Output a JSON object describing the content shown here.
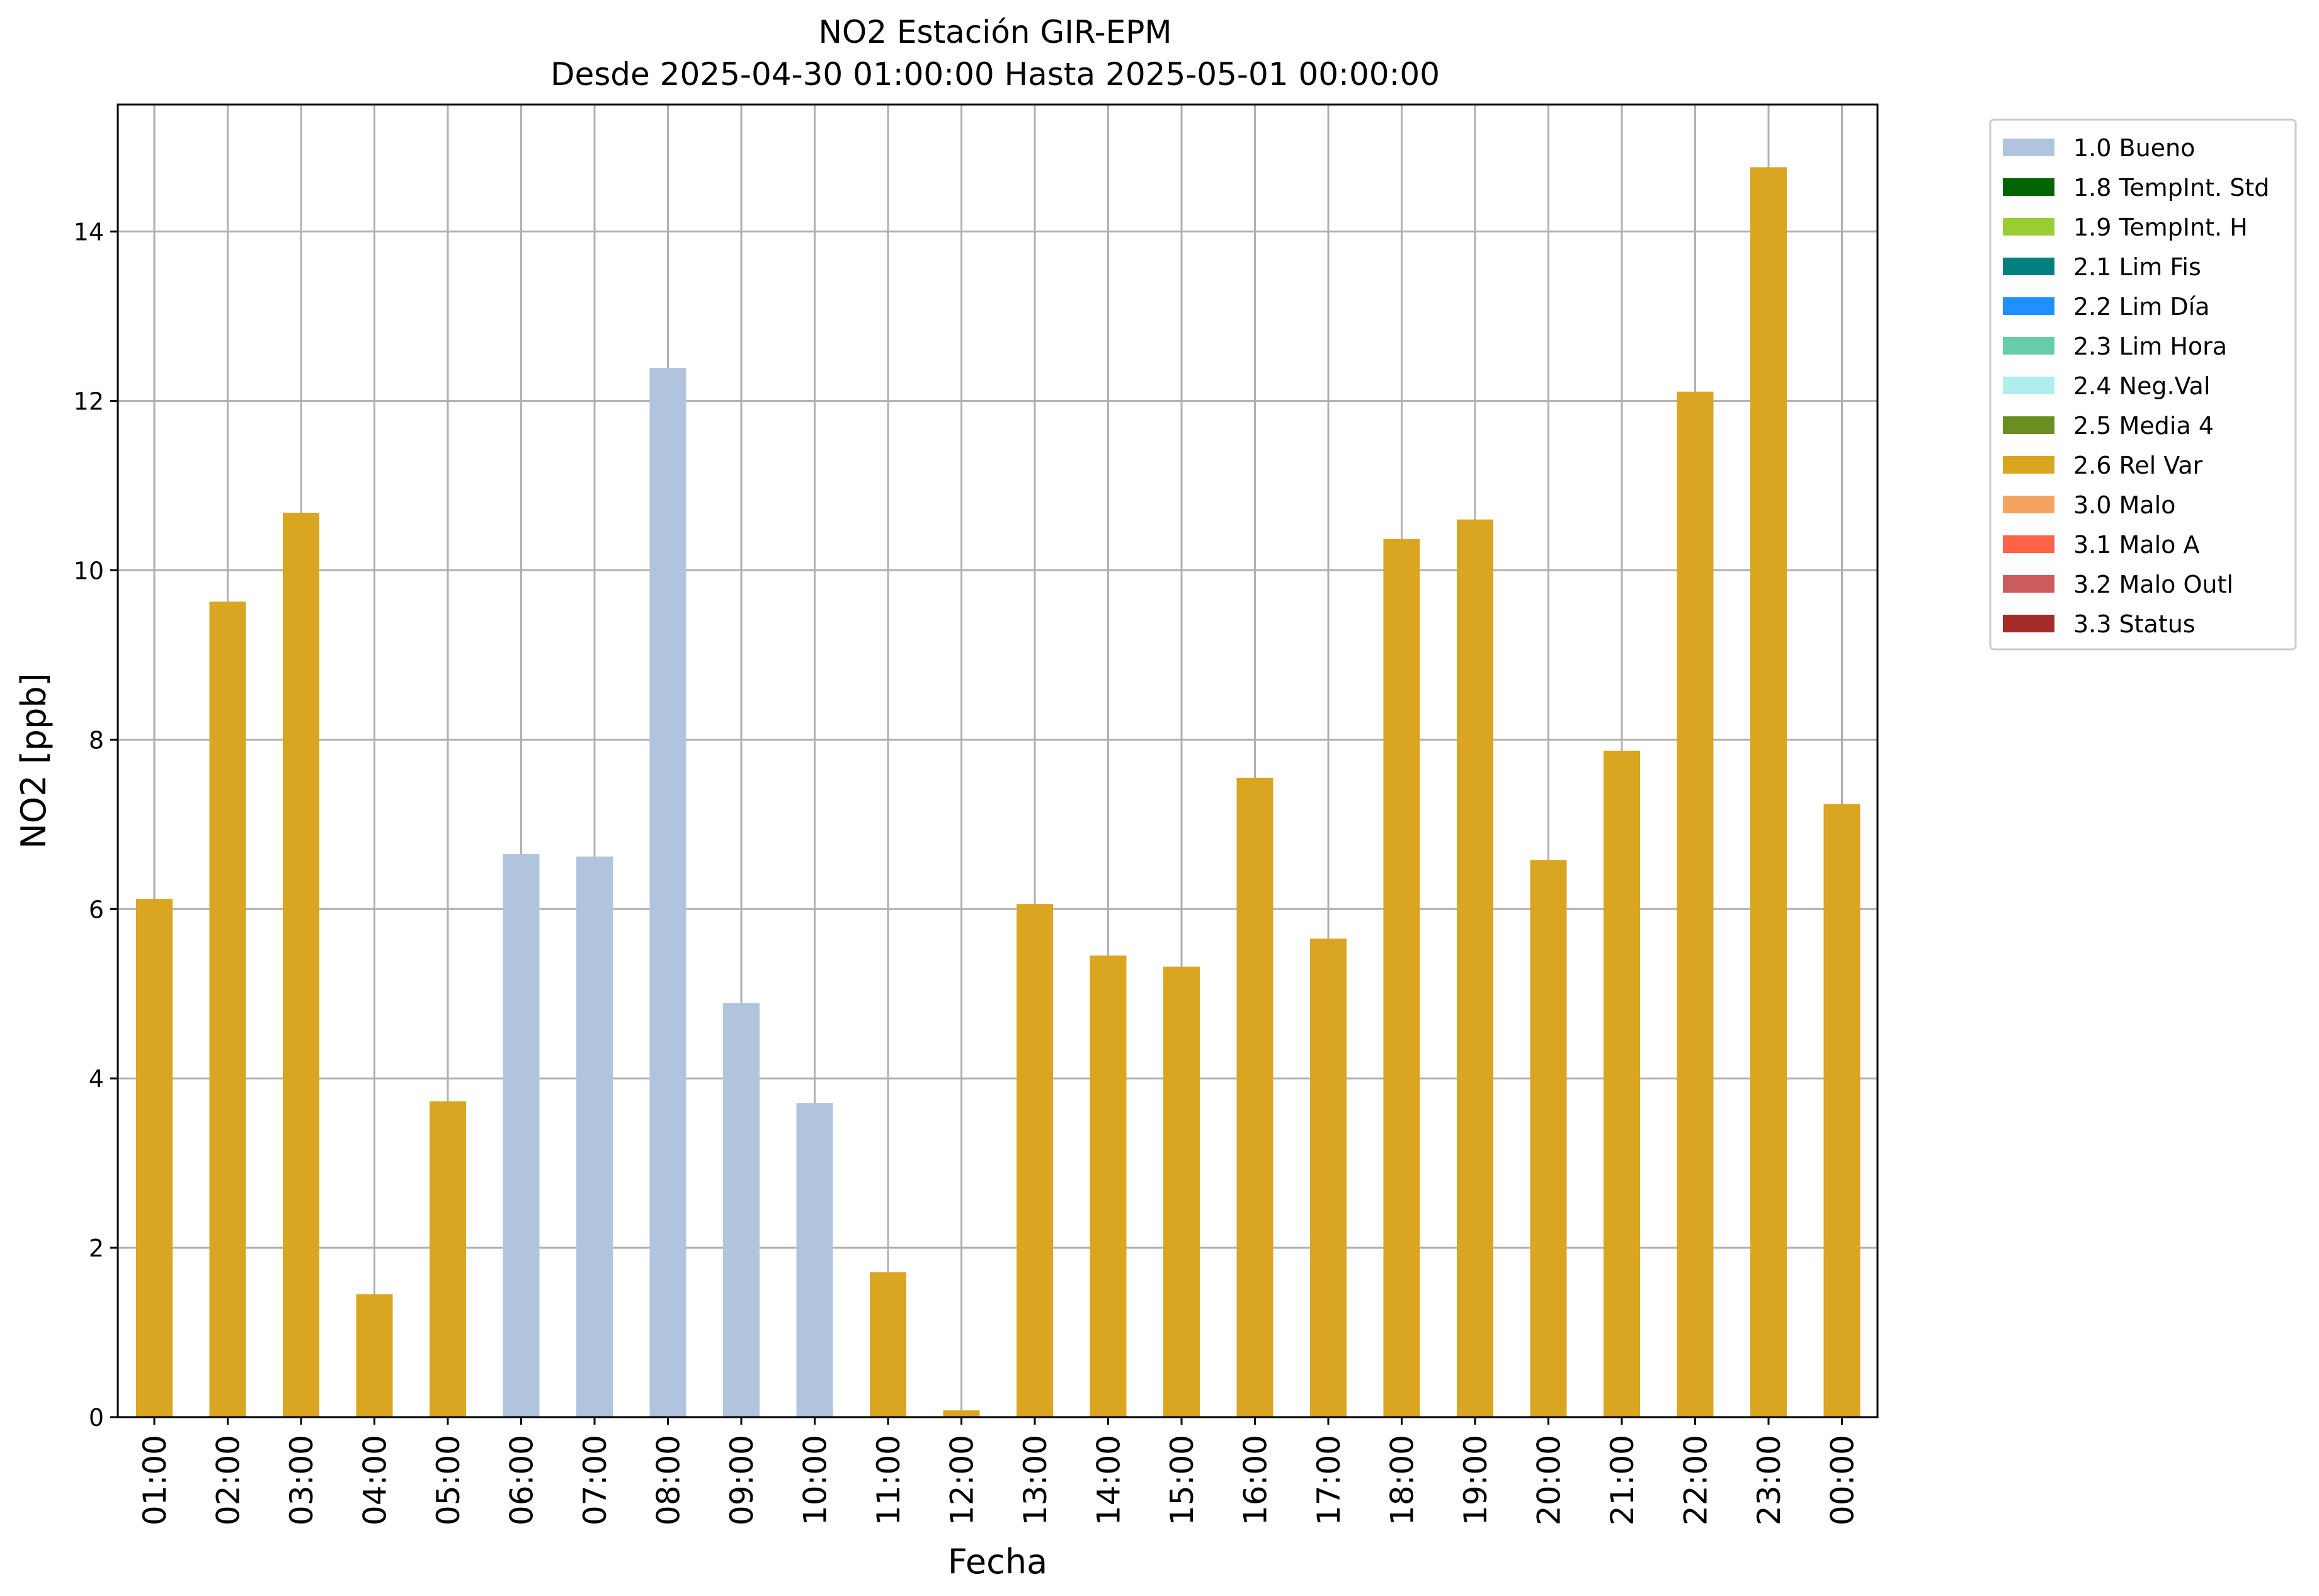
{
  "chart_data": {
    "type": "bar",
    "title": "NO2 Estación GIR-EPM",
    "subtitle": "Desde 2025-04-30 01:00:00 Hasta 2025-05-01 00:00:00",
    "xlabel": "Fecha",
    "ylabel": "NO2 [ppb]",
    "ylim": [
      0,
      15.5
    ],
    "yticks": [
      0,
      2,
      4,
      6,
      8,
      10,
      12,
      14
    ],
    "grid": true,
    "legend_position": "outside-right-top",
    "categories": [
      "01:00",
      "02:00",
      "03:00",
      "04:00",
      "05:00",
      "06:00",
      "07:00",
      "08:00",
      "09:00",
      "10:00",
      "11:00",
      "12:00",
      "13:00",
      "14:00",
      "15:00",
      "16:00",
      "17:00",
      "18:00",
      "19:00",
      "20:00",
      "21:00",
      "22:00",
      "23:00",
      "00:00"
    ],
    "values": [
      6.12,
      9.63,
      10.68,
      1.45,
      3.73,
      6.65,
      6.62,
      12.39,
      4.89,
      3.71,
      1.71,
      0.08,
      6.06,
      5.45,
      5.32,
      7.55,
      5.65,
      10.37,
      10.6,
      6.58,
      7.87,
      12.11,
      14.76,
      7.24
    ],
    "flags": [
      "2.6 Rel Var",
      "2.6 Rel Var",
      "2.6 Rel Var",
      "2.6 Rel Var",
      "2.6 Rel Var",
      "1.0 Bueno",
      "1.0 Bueno",
      "1.0 Bueno",
      "1.0 Bueno",
      "1.0 Bueno",
      "2.6 Rel Var",
      "2.6 Rel Var",
      "2.6 Rel Var",
      "2.6 Rel Var",
      "2.6 Rel Var",
      "2.6 Rel Var",
      "2.6 Rel Var",
      "2.6 Rel Var",
      "2.6 Rel Var",
      "2.6 Rel Var",
      "2.6 Rel Var",
      "2.6 Rel Var",
      "2.6 Rel Var",
      "2.6 Rel Var"
    ],
    "legend": [
      {
        "label": "1.0 Bueno",
        "color": "#b0c4de"
      },
      {
        "label": "1.8 TempInt. Std",
        "color": "#006400"
      },
      {
        "label": "1.9 TempInt. H",
        "color": "#9acd32"
      },
      {
        "label": "2.1 Lim Fis",
        "color": "#008080"
      },
      {
        "label": "2.2 Lim Día",
        "color": "#1e90ff"
      },
      {
        "label": "2.3 Lim Hora",
        "color": "#66cdaa"
      },
      {
        "label": "2.4 Neg.Val",
        "color": "#afeeee"
      },
      {
        "label": "2.5 Media 4",
        "color": "#6b8e23"
      },
      {
        "label": "2.6 Rel Var",
        "color": "#daa520"
      },
      {
        "label": "3.0 Malo",
        "color": "#f4a460"
      },
      {
        "label": "3.1 Malo A",
        "color": "#ff6347"
      },
      {
        "label": "3.2 Malo Outl",
        "color": "#cd5c5c"
      },
      {
        "label": "3.3 Status",
        "color": "#a52a2a"
      }
    ]
  }
}
